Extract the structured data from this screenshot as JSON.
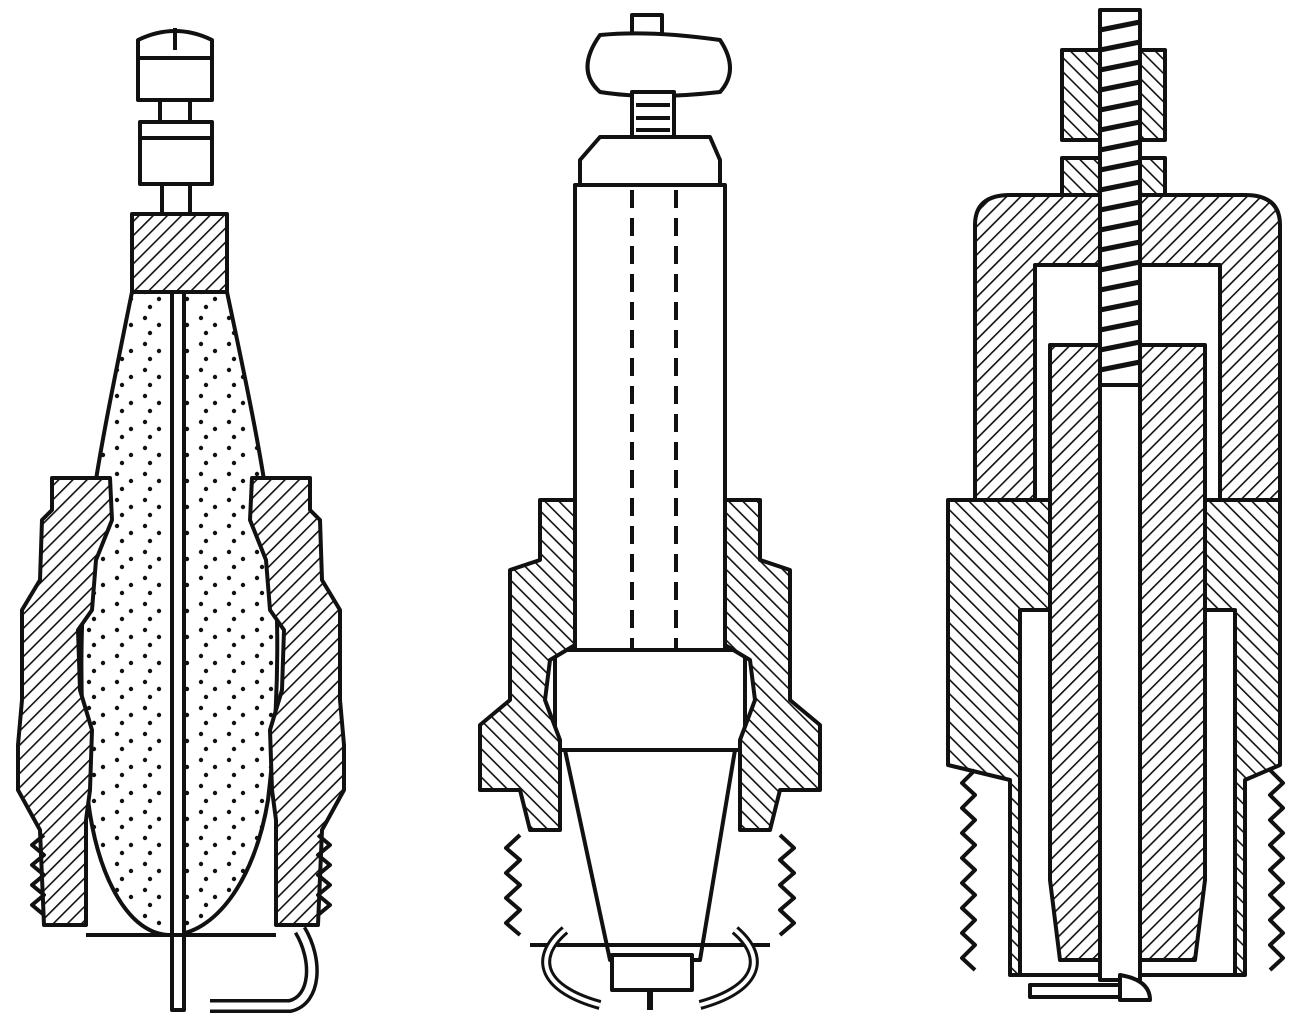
{
  "figure": {
    "description_visible_text": "",
    "colors": {
      "ink": "#111111",
      "paper": "#ffffff"
    },
    "plugs": [
      {
        "id": "plug-1",
        "style": "porcelain-dotted-insulator"
      },
      {
        "id": "plug-2",
        "style": "mica-tube-insulator"
      },
      {
        "id": "plug-3",
        "style": "hatched-section-insulator"
      }
    ]
  }
}
